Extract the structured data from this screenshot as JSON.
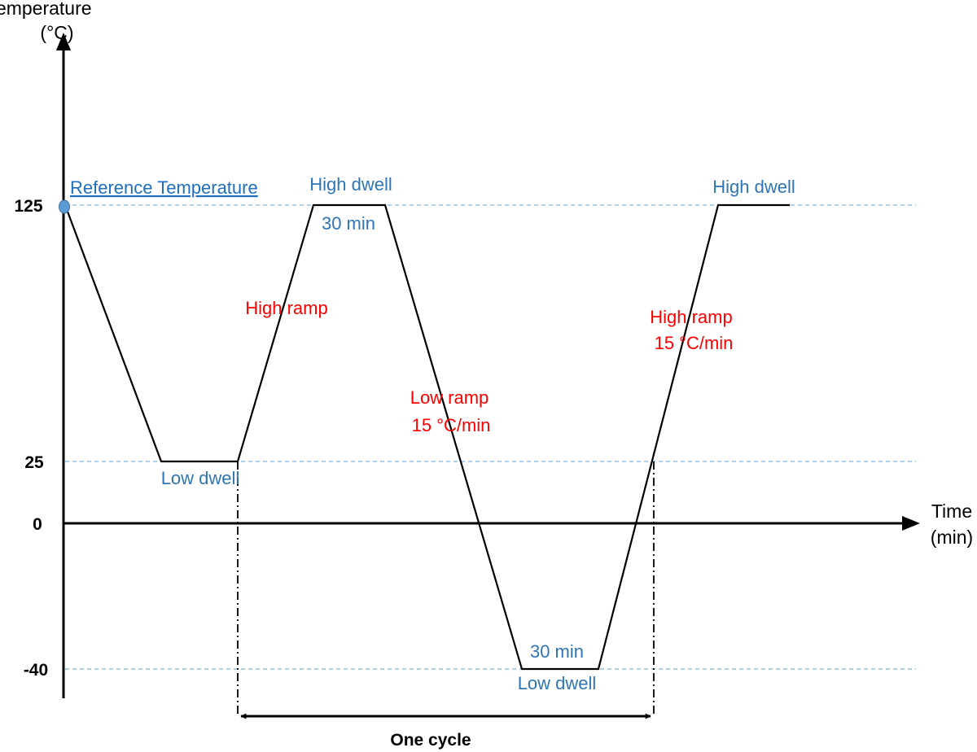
{
  "y_axis": {
    "title_line1": "Temperature",
    "title_line2": "(°C)",
    "ticks": [
      {
        "value": 125,
        "label": "125"
      },
      {
        "value": 25,
        "label": "25"
      },
      {
        "value": 0,
        "label": "0"
      },
      {
        "value": -40,
        "label": "-40"
      }
    ]
  },
  "x_axis": {
    "title_line1": "Time",
    "title_line2": "(min)"
  },
  "reference": {
    "label": "Reference Temperature",
    "temperature": 125,
    "color": "#5b9bd5"
  },
  "labels": {
    "high_dwell_1": "High dwell",
    "high_dwell_1_time": "30 min",
    "high_ramp_1": "High ramp",
    "low_dwell_1": "Low dwell",
    "low_ramp": "Low ramp",
    "low_ramp_rate": "15 °C/min",
    "low_dwell_2_time": "30 min",
    "low_dwell_2": "Low dwell",
    "high_ramp_2": "High ramp",
    "high_ramp_2_rate": "15 °C/min",
    "high_dwell_2": "High dwell",
    "one_cycle": "One cycle"
  },
  "colors": {
    "blue_label": "#2e75b6",
    "red_label": "#ff0000",
    "guide": "#7fb3d9",
    "profile": "#000000"
  },
  "profile_temperatures": [
    125,
    25,
    25,
    125,
    125,
    -40,
    -40,
    125,
    125
  ]
}
